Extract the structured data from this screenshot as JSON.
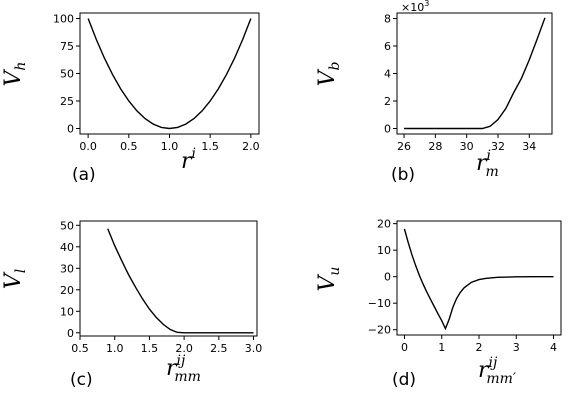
{
  "chart_data": [
    {
      "type": "line",
      "panel_label": "(a)",
      "ylabel": {
        "base": "V",
        "sub": "h"
      },
      "xlabel": {
        "base": "r",
        "sup": "i"
      },
      "xlim": [
        -0.1,
        2.1
      ],
      "ylim": [
        -5,
        105
      ],
      "xticks": [
        0.0,
        0.5,
        1.0,
        1.5,
        2.0
      ],
      "xtick_labels": [
        "0.0",
        "0.5",
        "1.0",
        "1.5",
        "2.0"
      ],
      "yticks": [
        0,
        25,
        50,
        75,
        100
      ],
      "ytick_labels": [
        "0",
        "25",
        "50",
        "75",
        "100"
      ],
      "series": [
        {
          "x": [
            0.0,
            0.1,
            0.2,
            0.3,
            0.4,
            0.5,
            0.6,
            0.7,
            0.8,
            0.9,
            1.0,
            1.1,
            1.2,
            1.3,
            1.4,
            1.5,
            1.6,
            1.7,
            1.8,
            1.9,
            2.0
          ],
          "y": [
            100,
            81,
            64,
            49,
            36,
            25,
            16,
            9,
            4,
            1,
            0,
            1,
            4,
            9,
            16,
            25,
            36,
            49,
            64,
            81,
            100
          ]
        }
      ]
    },
    {
      "type": "line",
      "panel_label": "(b)",
      "ylabel": {
        "base": "V",
        "sub": "b"
      },
      "xlabel": {
        "base": "r",
        "sup": "i",
        "sub": "m"
      },
      "multiplier": {
        "base": "×10",
        "exp": "3"
      },
      "xlim": [
        25.55,
        35.45
      ],
      "ylim": [
        -0.4,
        8.4
      ],
      "xticks": [
        26,
        28,
        30,
        32,
        34
      ],
      "xtick_labels": [
        "26",
        "28",
        "30",
        "32",
        "34"
      ],
      "yticks": [
        0,
        2,
        4,
        6,
        8
      ],
      "ytick_labels": [
        "0",
        "2",
        "4",
        "6",
        "8"
      ],
      "series": [
        {
          "x": [
            26.0,
            28.0,
            30.0,
            31.0,
            31.5,
            32.0,
            32.5,
            33.0,
            33.5,
            34.0,
            34.5,
            35.0
          ],
          "y": [
            0,
            0,
            0,
            0,
            0.16,
            0.65,
            1.45,
            2.6,
            3.65,
            5.0,
            6.5,
            8.05
          ]
        }
      ]
    },
    {
      "type": "line",
      "panel_label": "(c)",
      "ylabel": {
        "base": "V",
        "sub": "l"
      },
      "xlabel": {
        "base": "r",
        "sup": "ij",
        "sub": "mm"
      },
      "xlim": [
        0.5,
        3.05
      ],
      "ylim": [
        -1.5,
        52
      ],
      "xticks": [
        0.5,
        1.0,
        1.5,
        2.0,
        2.5,
        3.0
      ],
      "xtick_labels": [
        "0.5",
        "1.0",
        "1.5",
        "2.0",
        "2.5",
        "3.0"
      ],
      "yticks": [
        0,
        10,
        20,
        30,
        40,
        50
      ],
      "ytick_labels": [
        "0",
        "10",
        "20",
        "30",
        "40",
        "50"
      ],
      "series": [
        {
          "x": [
            0.9,
            1.0,
            1.1,
            1.2,
            1.3,
            1.4,
            1.5,
            1.6,
            1.7,
            1.8,
            1.9,
            2.0,
            2.5,
            3.0
          ],
          "y": [
            48.4,
            40.5,
            33.6,
            27.0,
            21.2,
            15.8,
            11.0,
            7.1,
            3.9,
            1.5,
            0.2,
            0,
            0,
            0
          ]
        }
      ]
    },
    {
      "type": "line",
      "panel_label": "(d)",
      "ylabel": {
        "base": "V",
        "sub": "u"
      },
      "xlabel": {
        "base": "r",
        "sup": "ij",
        "sub": "mm′"
      },
      "xlim": [
        -0.2,
        4.2
      ],
      "ylim": [
        -22,
        21
      ],
      "xticks": [
        0,
        1,
        2,
        3,
        4
      ],
      "xtick_labels": [
        "0",
        "1",
        "2",
        "3",
        "4"
      ],
      "yticks": [
        -20,
        -10,
        0,
        10,
        20
      ],
      "ytick_labels": [
        "−20",
        "−10",
        "0",
        "10",
        "20"
      ],
      "series": [
        {
          "x": [
            0.0,
            0.1,
            0.2,
            0.3,
            0.4,
            0.5,
            0.6,
            0.7,
            0.8,
            0.9,
            1.0,
            1.1,
            1.2,
            1.3,
            1.4,
            1.5,
            1.6,
            1.8,
            2.0,
            2.2,
            2.5,
            3.0,
            3.5,
            4.0
          ],
          "y": [
            18.0,
            12.9,
            8.3,
            4.2,
            0.5,
            -2.8,
            -5.8,
            -8.6,
            -11.3,
            -14.0,
            -16.6,
            -19.6,
            -16.0,
            -11.5,
            -8.2,
            -5.9,
            -4.2,
            -2.1,
            -1.1,
            -0.6,
            -0.25,
            -0.05,
            0,
            0
          ]
        }
      ]
    }
  ]
}
